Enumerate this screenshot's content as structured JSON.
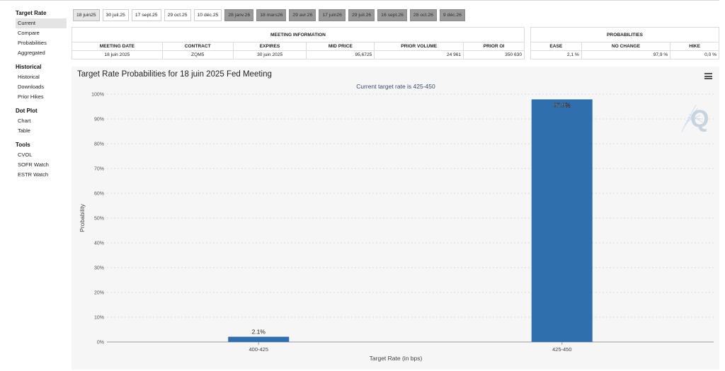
{
  "sidebar": {
    "sections": [
      {
        "title": "Target Rate",
        "items": [
          "Current",
          "Compare",
          "Probabilities",
          "Aggregated"
        ]
      },
      {
        "title": "Historical",
        "items": [
          "Historical",
          "Downloads",
          "Prior Hikes"
        ]
      },
      {
        "title": "Dot Plot",
        "items": [
          "Chart",
          "Table"
        ]
      },
      {
        "title": "Tools",
        "items": [
          "CVOL",
          "SOFR Watch",
          "ESTR Watch"
        ]
      }
    ],
    "active": "Current"
  },
  "tabs": [
    {
      "label": "18 juin25",
      "state": "selected"
    },
    {
      "label": "30 juil.25",
      "state": "normal"
    },
    {
      "label": "17 sept.25",
      "state": "normal"
    },
    {
      "label": "29 oct.25",
      "state": "normal"
    },
    {
      "label": "10 déc.25",
      "state": "normal"
    },
    {
      "label": "28 janv.26",
      "state": "disabled"
    },
    {
      "label": "18 mars26",
      "state": "disabled"
    },
    {
      "label": "29 avr.26",
      "state": "disabled"
    },
    {
      "label": "17 juin26",
      "state": "disabled"
    },
    {
      "label": "29 juil.26",
      "state": "disabled"
    },
    {
      "label": "16 sept.26",
      "state": "disabled"
    },
    {
      "label": "28 oct.26",
      "state": "disabled"
    },
    {
      "label": "9 déc.26",
      "state": "disabled"
    }
  ],
  "meeting_info": {
    "header": "MEETING INFORMATION",
    "columns": [
      "MEETING DATE",
      "CONTRACT",
      "EXPIRES",
      "MID PRICE",
      "PRIOR VOLUME",
      "PRIOR OI"
    ],
    "row": {
      "meeting_date": "18 juin 2025",
      "contract": "ZQM5",
      "expires": "30 juin 2025",
      "mid_price": "95,6725",
      "prior_volume": "24 961",
      "prior_oi": "350 630"
    }
  },
  "probabilities": {
    "header": "PROBABILITIES",
    "columns": [
      "EASE",
      "NO CHANGE",
      "HIKE"
    ],
    "row": {
      "ease": "2,1 %",
      "no_change": "97,9 %",
      "hike": "0,0 %"
    }
  },
  "chart": {
    "title": "Target Rate Probabilities for 18 juin 2025 Fed Meeting"
  },
  "colors": {
    "bar": "#2f6fad",
    "subtitle": "#3a4a6b",
    "tab_disabled": "#9a9a9a"
  },
  "chart_data": {
    "type": "bar",
    "title": "Target Rate Probabilities for 18 juin 2025 Fed Meeting",
    "subtitle": "Current target rate is 425-450",
    "xlabel": "Target Rate (in bps)",
    "ylabel": "Probability",
    "categories": [
      "400-425",
      "425-450"
    ],
    "values": [
      2.1,
      97.9
    ],
    "data_labels": [
      "2.1%",
      "97.9%"
    ],
    "ylim": [
      0,
      100
    ],
    "yticks": [
      "0%",
      "10%",
      "20%",
      "30%",
      "40%",
      "50%",
      "60%",
      "70%",
      "80%",
      "90%",
      "100%"
    ],
    "grid": true,
    "legend": "none"
  }
}
